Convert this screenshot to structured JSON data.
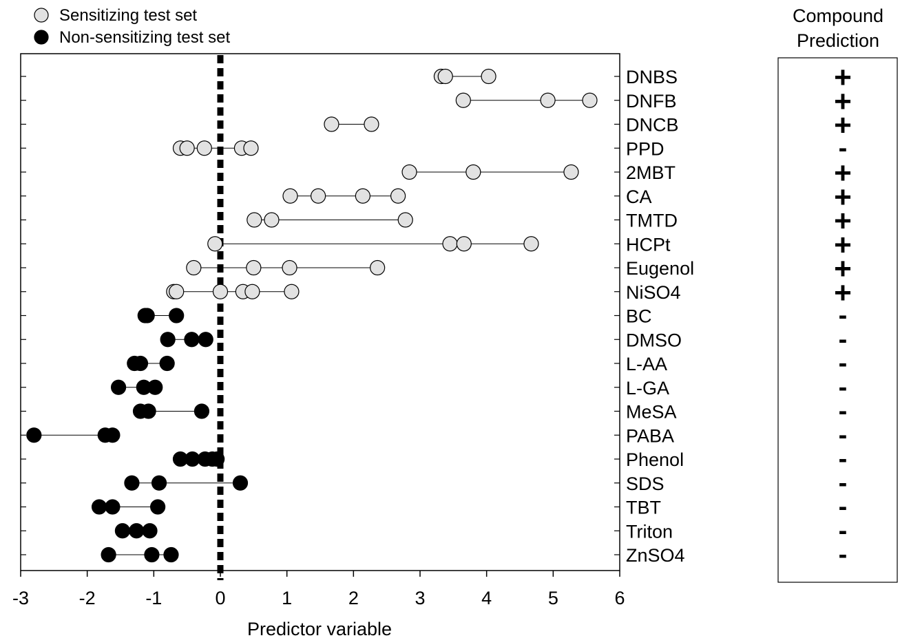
{
  "chart_data": {
    "type": "scatter",
    "xlabel": "Predictor variable",
    "xlim": [
      -3,
      6
    ],
    "x_ticks": [
      "-3",
      "-2",
      "-1",
      "0",
      "1",
      "2",
      "3",
      "4",
      "5",
      "6"
    ],
    "threshold": 0,
    "legend": {
      "placement": "top-left",
      "entries": [
        "Sensitizing test set",
        "Non-sensitizing test set"
      ]
    },
    "prediction_header": "Compound Prediction",
    "colors": {
      "sensitizing": "#e2e2e2",
      "non_sensitizing": "#000000"
    },
    "series": [
      {
        "name": "Sensitizing test set",
        "compounds": [
          {
            "label": "DNBS",
            "values": [
              3.32,
              3.38,
              4.03
            ],
            "prediction": "+"
          },
          {
            "label": "DNFB",
            "values": [
              3.65,
              4.92,
              5.55
            ],
            "prediction": "+"
          },
          {
            "label": "DNCB",
            "values": [
              1.67,
              2.27
            ],
            "prediction": "+"
          },
          {
            "label": "PPD",
            "values": [
              -0.6,
              -0.5,
              -0.24,
              0.32,
              0.46
            ],
            "prediction": "-"
          },
          {
            "label": "2MBT",
            "values": [
              2.84,
              3.8,
              5.27
            ],
            "prediction": "+"
          },
          {
            "label": "CA",
            "values": [
              1.05,
              1.47,
              2.14,
              2.67
            ],
            "prediction": "+"
          },
          {
            "label": "TMTD",
            "values": [
              0.51,
              0.77,
              2.78
            ],
            "prediction": "+"
          },
          {
            "label": "HCPt",
            "values": [
              -0.08,
              3.45,
              3.66,
              4.67
            ],
            "prediction": "+"
          },
          {
            "label": "Eugenol",
            "values": [
              -0.4,
              0.5,
              1.04,
              2.36
            ],
            "prediction": "+"
          },
          {
            "label": "NiSO4",
            "values": [
              -0.7,
              -0.66,
              0.0,
              0.34,
              0.48,
              1.07
            ],
            "prediction": "+"
          }
        ]
      },
      {
        "name": "Non-sensitizing test set",
        "compounds": [
          {
            "label": "BC",
            "values": [
              -1.13,
              -1.1,
              -0.66
            ],
            "prediction": "-"
          },
          {
            "label": "DMSO",
            "values": [
              -0.79,
              -0.43,
              -0.22
            ],
            "prediction": "-"
          },
          {
            "label": "L-AA",
            "values": [
              -1.29,
              -1.2,
              -0.8
            ],
            "prediction": "-"
          },
          {
            "label": "L-GA",
            "values": [
              -1.53,
              -1.15,
              -0.98
            ],
            "prediction": "-"
          },
          {
            "label": "MeSA",
            "values": [
              -1.2,
              -1.08,
              -0.28
            ],
            "prediction": "-"
          },
          {
            "label": "PABA",
            "values": [
              -2.8,
              -1.73,
              -1.62
            ],
            "prediction": "-"
          },
          {
            "label": "Phenol",
            "values": [
              -0.6,
              -0.42,
              -0.23,
              -0.12,
              -0.05
            ],
            "prediction": "-"
          },
          {
            "label": "SDS",
            "values": [
              -1.33,
              -0.92,
              0.3
            ],
            "prediction": "-"
          },
          {
            "label": "TBT",
            "values": [
              -1.82,
              -1.62,
              -0.94
            ],
            "prediction": "-"
          },
          {
            "label": "Triton",
            "values": [
              -1.47,
              -1.26,
              -1.06
            ],
            "prediction": "-"
          },
          {
            "label": "ZnSO4",
            "values": [
              -1.68,
              -1.03,
              -0.74
            ],
            "prediction": "-"
          }
        ]
      }
    ]
  }
}
